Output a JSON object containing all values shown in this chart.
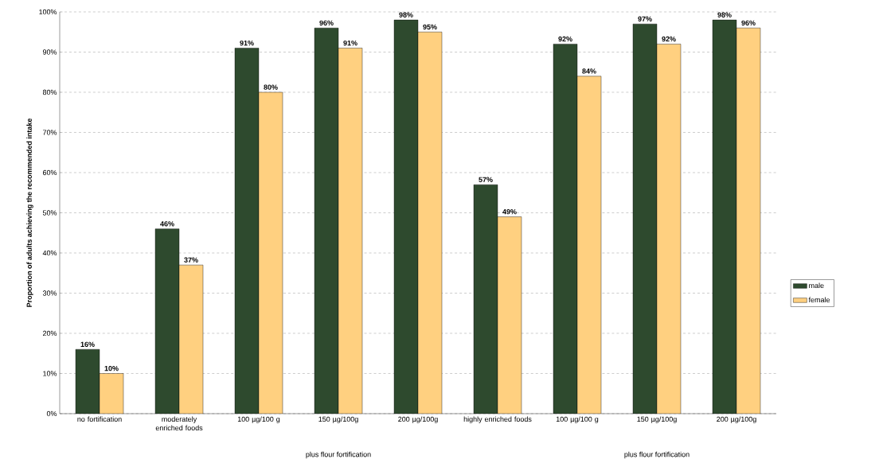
{
  "chart_data": {
    "type": "bar",
    "ylabel": "Proportion of adults achieving the recommended intake",
    "categories": [
      "no fortification",
      "moderately enriched foods",
      "100 µg/100 g",
      "150 µg/100g",
      "200 µg/100g",
      "highly enriched foods",
      "100 µg/100 g",
      "150 µg/100g",
      "200 µg/100g"
    ],
    "series": [
      {
        "name": "male",
        "color": "#2e4a2e",
        "values": [
          16,
          46,
          91,
          96,
          98,
          57,
          92,
          97,
          98
        ],
        "value_labels": [
          "16%",
          "46%",
          "91%",
          "96%",
          "98%",
          "57%",
          "92%",
          "97%",
          "98%"
        ]
      },
      {
        "name": "female",
        "color": "#ffd080",
        "values": [
          10,
          37,
          80,
          91,
          95,
          49,
          84,
          92,
          96
        ],
        "value_labels": [
          "10%",
          "37%",
          "80%",
          "91%",
          "95%",
          "49%",
          "84%",
          "92%",
          "96%"
        ]
      }
    ],
    "ylim": [
      0,
      100
    ],
    "yticks": [
      {
        "value": 0,
        "label": "0%"
      },
      {
        "value": 10,
        "label": "10%"
      },
      {
        "value": 20,
        "label": "20%"
      },
      {
        "value": 30,
        "label": "30%"
      },
      {
        "value": 40,
        "label": "40%"
      },
      {
        "value": 50,
        "label": "50%"
      },
      {
        "value": 60,
        "label": "60%"
      },
      {
        "value": 70,
        "label": "70%"
      },
      {
        "value": 80,
        "label": "80%"
      },
      {
        "value": 90,
        "label": "90%"
      },
      {
        "value": 100,
        "label": "100%"
      }
    ],
    "grid": "y",
    "legend": "right",
    "annotations": [
      "plus flour fortification",
      "plus flour fortification"
    ]
  }
}
